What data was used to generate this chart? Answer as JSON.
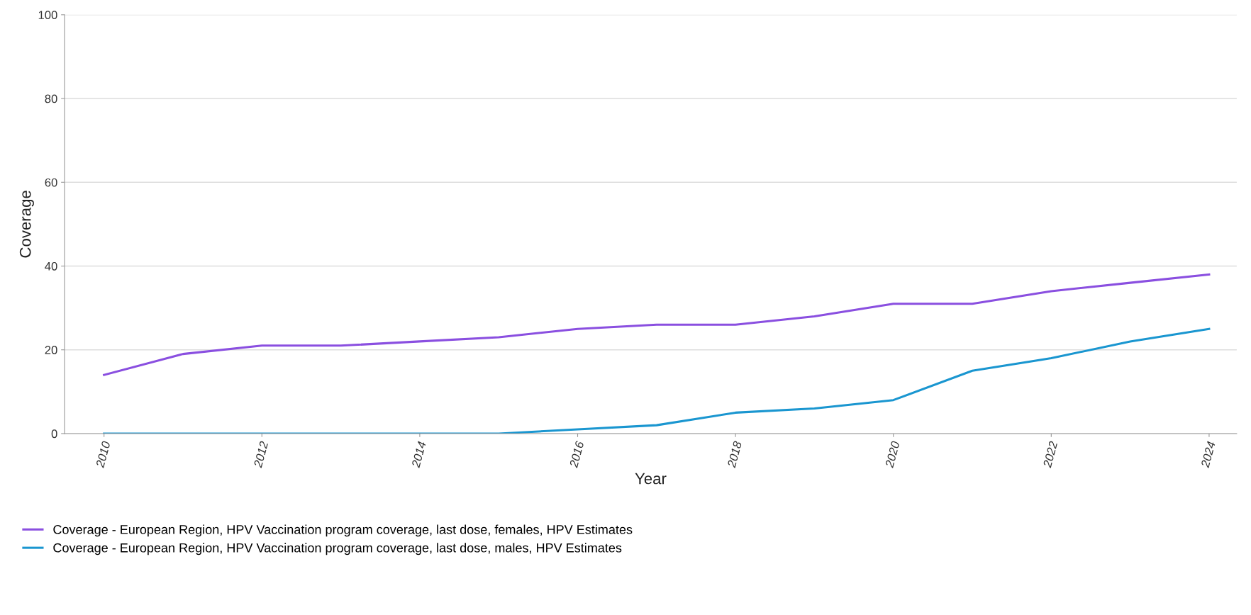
{
  "chart_data": {
    "type": "line",
    "xlabel": "Year",
    "ylabel": "Coverage",
    "x": [
      2010,
      2011,
      2012,
      2013,
      2014,
      2015,
      2016,
      2017,
      2018,
      2019,
      2020,
      2021,
      2022,
      2023,
      2024
    ],
    "series": [
      {
        "name": "Coverage - European Region, HPV Vaccination program coverage, last dose, females, HPV Estimates",
        "color": "#8a4fe0",
        "values": [
          14,
          19,
          21,
          21,
          22,
          23,
          25,
          26,
          26,
          28,
          31,
          31,
          34,
          36,
          38
        ]
      },
      {
        "name": "Coverage - European Region, HPV Vaccination program coverage, last dose, males, HPV Estimates",
        "color": "#1a96d0",
        "values": [
          0,
          0,
          0,
          0,
          0,
          0,
          1,
          2,
          5,
          6,
          8,
          15,
          18,
          22,
          25
        ]
      }
    ],
    "xlim": [
      2009.5,
      2024.35
    ],
    "xticks": [
      2010,
      2012,
      2014,
      2016,
      2018,
      2020,
      2022,
      2024
    ],
    "ylim": [
      0,
      100
    ],
    "yticks": [
      0,
      20,
      40,
      60,
      80,
      100
    ],
    "grid": "y",
    "legend": "bottom left",
    "marker": "none",
    "line_style": "solid"
  }
}
